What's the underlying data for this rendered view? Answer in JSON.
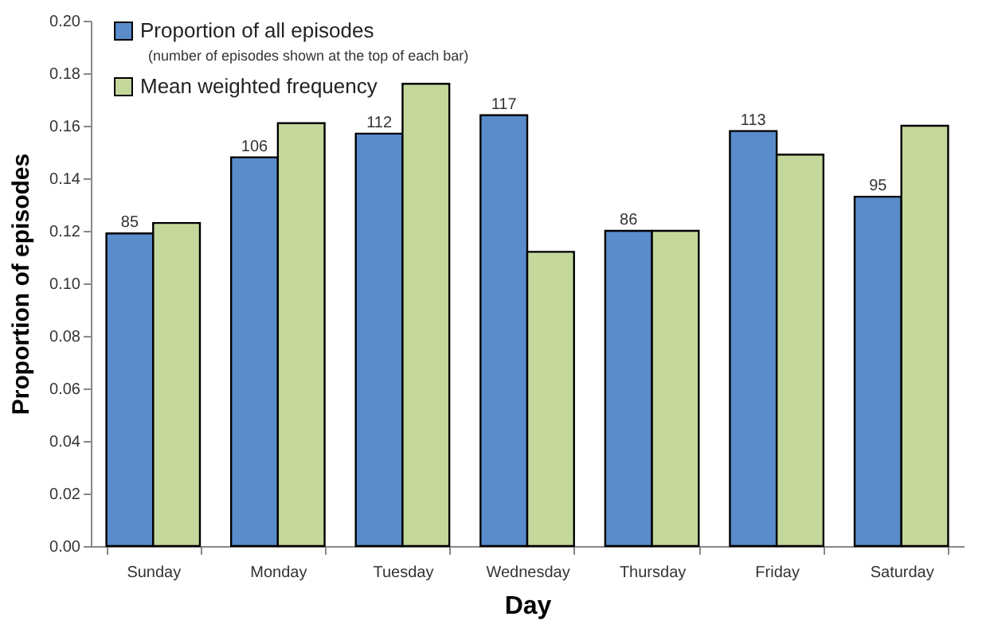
{
  "chart_data": {
    "type": "bar",
    "xlabel": "Day",
    "ylabel": "Proportion of episodes",
    "categories": [
      "Sunday",
      "Monday",
      "Tuesday",
      "Wednesday",
      "Thursday",
      "Friday",
      "Saturday"
    ],
    "series": [
      {
        "name": "Proportion of all episodes",
        "color": "#5a8bcb",
        "values": [
          0.119,
          0.148,
          0.157,
          0.164,
          0.12,
          0.158,
          0.133
        ]
      },
      {
        "name": "Mean weighted frequency",
        "color": "#c4d89c",
        "values": [
          0.123,
          0.161,
          0.176,
          0.112,
          0.12,
          0.149,
          0.16
        ]
      }
    ],
    "annotations": [
      "(number of episodes shown at the top of each bar)",
      {
        "text": "85",
        "x": "Sunday",
        "y": 0.119
      },
      {
        "text": "106",
        "x": "Monday",
        "y": 0.148
      },
      {
        "text": "112",
        "x": "Tuesday",
        "y": 0.157
      },
      {
        "text": "117",
        "x": "Wednesday",
        "y": 0.164
      },
      {
        "text": "86",
        "x": "Thursday",
        "y": 0.12
      },
      {
        "text": "113",
        "x": "Friday",
        "y": 0.158
      },
      {
        "text": "95",
        "x": "Saturday",
        "y": 0.133
      }
    ],
    "ylim": [
      0,
      0.2
    ],
    "yticks": [
      {
        "value": 0,
        "label": "0.00"
      },
      {
        "value": 0.02,
        "label": "0.02"
      },
      {
        "value": 0.04,
        "label": "0.04"
      },
      {
        "value": 0.06,
        "label": "0.06"
      },
      {
        "value": 0.08,
        "label": "0.08"
      },
      {
        "value": 0.1,
        "label": "0.10"
      },
      {
        "value": 0.12,
        "label": "0.12"
      },
      {
        "value": 0.14,
        "label": "0.14"
      },
      {
        "value": 0.16,
        "label": "0.16"
      },
      {
        "value": 0.18,
        "label": "0.18"
      },
      {
        "value": 0.2,
        "label": "0.20"
      }
    ],
    "grid": false,
    "legend": "top left"
  }
}
